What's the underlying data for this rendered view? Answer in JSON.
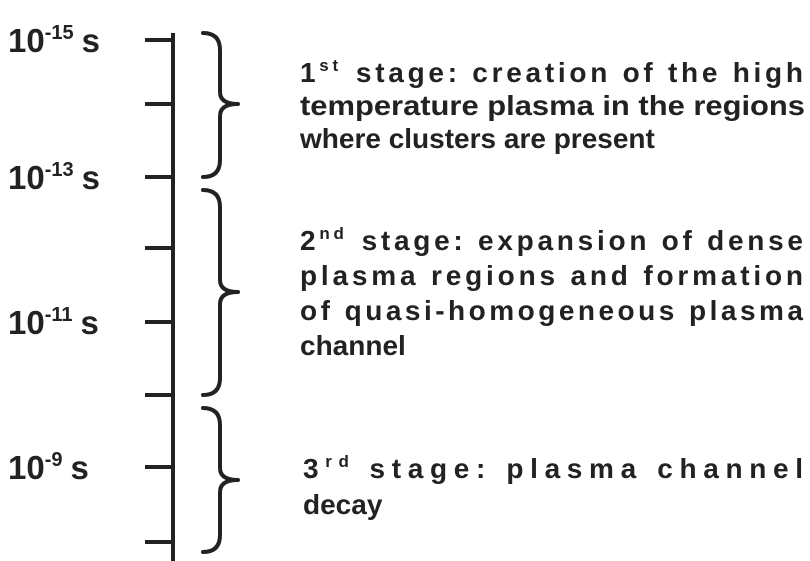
{
  "time_labels": [
    {
      "base": "10",
      "exponent": "-15",
      "unit": "s"
    },
    {
      "base": "10",
      "exponent": "-13",
      "unit": "s"
    },
    {
      "base": "10",
      "exponent": "-11",
      "unit": "s"
    },
    {
      "base": "10",
      "exponent": "-9",
      "unit": "s"
    }
  ],
  "stages": [
    {
      "number": "1",
      "suffix": "st",
      "lines": [
        "stage: creation of the high",
        "temperature plasma in the regions",
        "where clusters are present"
      ]
    },
    {
      "number": "2",
      "suffix": "nd",
      "lines": [
        "stage: expansion of dense",
        "plasma regions and formation",
        "of quasi-homogeneous plasma",
        "channel"
      ]
    },
    {
      "number": "3",
      "suffix": "rd",
      "lines": [
        "stage: plasma channel",
        "decay"
      ]
    }
  ]
}
